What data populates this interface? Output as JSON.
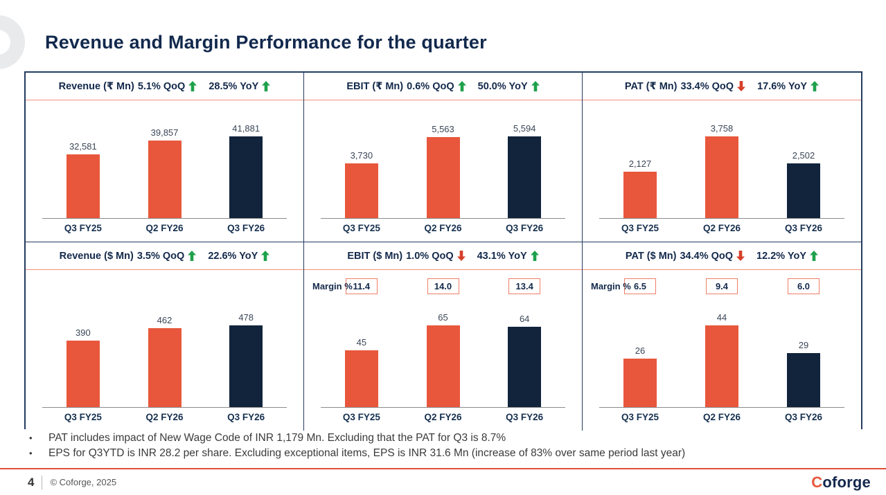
{
  "title": "Revenue and Margin Performance for the quarter",
  "notes": [
    "PAT includes impact of New Wage Code of INR 1,179 Mn. Excluding that the PAT for Q3 is 8.7%",
    "EPS for Q3YTD is INR 28.2 per share. Excluding exceptional items, EPS is INR 31.6 Mn (increase of 83% over same period last year)"
  ],
  "footer": {
    "page_number": "4",
    "copyright": "© Coforge, 2025",
    "logo_first_letter": "C",
    "logo_rest": "oforge"
  },
  "colors": {
    "coral": "#E8573C",
    "navy": "#11243C",
    "green_arrow": "#1FA14B",
    "red_arrow": "#D6402A"
  },
  "chart_data": [
    {
      "type": "bar",
      "title": "Revenue (₹ Mn)",
      "qoq": {
        "label": "5.1% QoQ",
        "direction": "up"
      },
      "yoy": {
        "label": "28.5% YoY",
        "direction": "up"
      },
      "categories": [
        "Q3 FY25",
        "Q2 FY26",
        "Q3 FY26"
      ],
      "values": [
        32581,
        39857,
        41881
      ],
      "value_labels": [
        "32,581",
        "39,857",
        "41,881"
      ],
      "bar_colors": [
        "coral",
        "coral",
        "navy"
      ]
    },
    {
      "type": "bar",
      "title": "EBIT (₹ Mn)",
      "qoq": {
        "label": "0.6% QoQ",
        "direction": "up"
      },
      "yoy": {
        "label": "50.0% YoY",
        "direction": "up"
      },
      "categories": [
        "Q3 FY25",
        "Q2 FY26",
        "Q3 FY26"
      ],
      "values": [
        3730,
        5563,
        5594
      ],
      "value_labels": [
        "3,730",
        "5,563",
        "5,594"
      ],
      "bar_colors": [
        "coral",
        "coral",
        "navy"
      ]
    },
    {
      "type": "bar",
      "title": "PAT (₹ Mn)",
      "qoq": {
        "label": "33.4% QoQ",
        "direction": "down"
      },
      "yoy": {
        "label": "17.6% YoY",
        "direction": "up"
      },
      "categories": [
        "Q3 FY25",
        "Q2 FY26",
        "Q3 FY26"
      ],
      "values": [
        2127,
        3758,
        2502
      ],
      "value_labels": [
        "2,127",
        "3,758",
        "2,502"
      ],
      "bar_colors": [
        "coral",
        "coral",
        "navy"
      ]
    },
    {
      "type": "bar",
      "title": "Revenue ($ Mn)",
      "qoq": {
        "label": "3.5% QoQ",
        "direction": "up"
      },
      "yoy": {
        "label": "22.6% YoY",
        "direction": "up"
      },
      "categories": [
        "Q3 FY25",
        "Q2 FY26",
        "Q3 FY26"
      ],
      "values": [
        390,
        462,
        478
      ],
      "value_labels": [
        "390",
        "462",
        "478"
      ],
      "bar_colors": [
        "coral",
        "coral",
        "navy"
      ]
    },
    {
      "type": "bar",
      "title": "EBIT ($ Mn)",
      "qoq": {
        "label": "1.0% QoQ",
        "direction": "down"
      },
      "yoy": {
        "label": "43.1% YoY",
        "direction": "up"
      },
      "margin_label": "Margin %",
      "margin_values": [
        "11.4",
        "14.0",
        "13.4"
      ],
      "categories": [
        "Q3 FY25",
        "Q2 FY26",
        "Q3 FY26"
      ],
      "values": [
        45,
        65,
        64
      ],
      "value_labels": [
        "45",
        "65",
        "64"
      ],
      "bar_colors": [
        "coral",
        "coral",
        "navy"
      ]
    },
    {
      "type": "bar",
      "title": "PAT ($ Mn)",
      "qoq": {
        "label": "34.4% QoQ",
        "direction": "down"
      },
      "yoy": {
        "label": "12.2% YoY",
        "direction": "up"
      },
      "margin_label": "Margin %",
      "margin_values": [
        "6.5",
        "9.4",
        "6.0"
      ],
      "categories": [
        "Q3 FY25",
        "Q2 FY26",
        "Q3 FY26"
      ],
      "values": [
        26,
        44,
        29
      ],
      "value_labels": [
        "26",
        "44",
        "29"
      ],
      "bar_colors": [
        "coral",
        "coral",
        "navy"
      ]
    }
  ]
}
